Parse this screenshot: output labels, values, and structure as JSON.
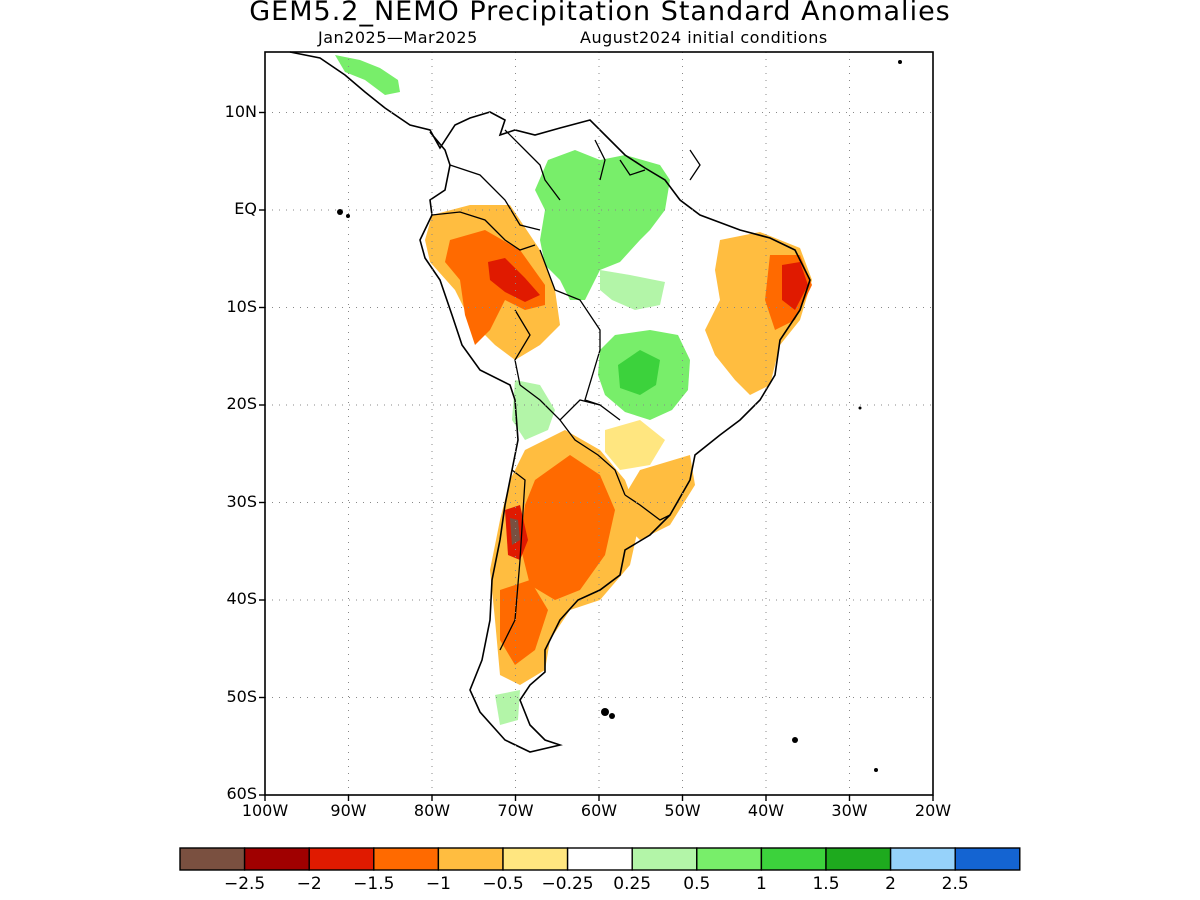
{
  "title": "GEM5.2_NEMO Precipitation Standard Anomalies",
  "subtitle_left": "Jan2025—Mar2025",
  "subtitle_right": "August2024 initial conditions",
  "y_ticks": [
    "10N",
    "EQ",
    "10S",
    "20S",
    "30S",
    "40S",
    "50S",
    "60S"
  ],
  "x_ticks": [
    "100W",
    "90W",
    "80W",
    "70W",
    "60W",
    "50W",
    "40W",
    "30W",
    "20W"
  ],
  "colorbar": {
    "colors": [
      "#7a5040",
      "#a00000",
      "#e01a00",
      "#ff6a00",
      "#ffbd40",
      "#ffe680",
      "#ffffff",
      "#b3f5a8",
      "#78ee6a",
      "#3cd23c",
      "#1eaa1e",
      "#96d2fa",
      "#1464d2"
    ],
    "labels": [
      "−2.5",
      "−2",
      "−1.5",
      "−1",
      "−0.5",
      "−0.25",
      "0.25",
      "0.5",
      "1",
      "1.5",
      "2",
      "2.5"
    ]
  },
  "chart_data": {
    "type": "heatmap",
    "variable": "Precipitation Standard Anomalies",
    "lon_range": [
      -100,
      -20
    ],
    "lat_range": [
      -60,
      15
    ],
    "anomaly_regions": [
      {
        "region": "Northern Amazon / Guianas",
        "category": "0.5 to 1"
      },
      {
        "region": "Central Brazil",
        "category": "0.5 to 1.5"
      },
      {
        "region": "Peru / western Amazon",
        "category": "-1.5 to -0.5"
      },
      {
        "region": "Northeast Brazil coast",
        "category": "-1.5 to -0.5"
      },
      {
        "region": "Eastern Brazil",
        "category": "-1 to -0.25"
      },
      {
        "region": "Northern Argentina",
        "category": "-1.5 to -0.5"
      },
      {
        "region": "Central Chile / Andes",
        "category": "-2.5 to -1"
      },
      {
        "region": "Southern Brazil / Uruguay",
        "category": "-1 to -0.25"
      },
      {
        "region": "Patagonia",
        "category": "-1 to -0.25"
      }
    ]
  }
}
